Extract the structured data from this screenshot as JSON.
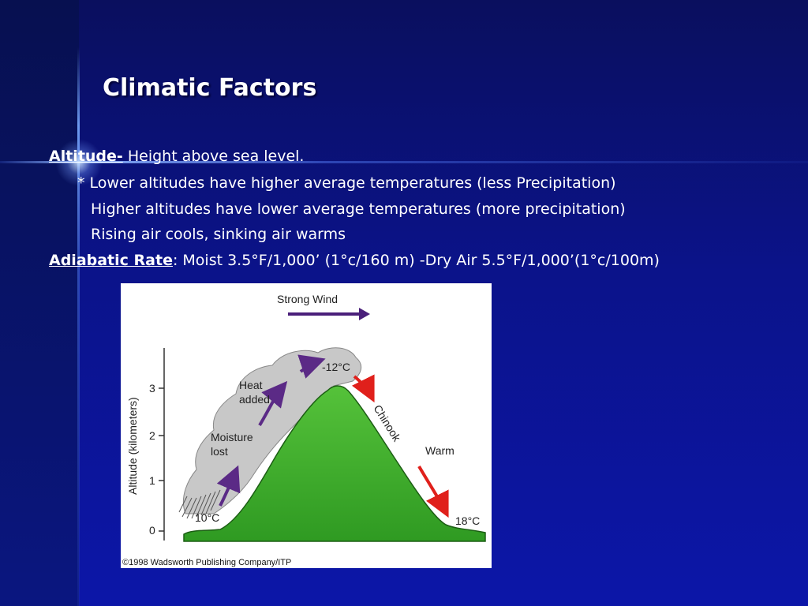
{
  "slide": {
    "title": "Climatic Factors",
    "altitude_term": "Altitude-",
    "altitude_def": " Height above sea level.",
    "bullet_lower": "* Lower altitudes have higher average temperatures (less Precipitation)",
    "bullet_higher": "Higher altitudes have lower average temperatures (more precipitation)",
    "bullet_rising": "Rising air cools, sinking air warms",
    "adiabatic_term": "Adiabatic Rate",
    "adiabatic_def": ": Moist 3.5°F/1,000’ (1°c/160 m)  -Dry Air 5.5°F/1,000’(1°c/100m)"
  },
  "diagram": {
    "wind_label": "Strong Wind",
    "y_axis_label": "Altitude (kilometers)",
    "y_ticks": [
      "0",
      "1",
      "2",
      "3"
    ],
    "heat_label_1": "Heat",
    "heat_label_2": "added",
    "moisture_label_1": "Moisture",
    "moisture_label_2": "lost",
    "temp_base": "10°C",
    "temp_peak": "-12°C",
    "temp_lee": "18°C",
    "chinook_label": "Chinook",
    "warm_label": "Warm",
    "copyright": "©1998 Wadsworth Publishing Company/ITP",
    "colors": {
      "mountain": "#3fae2a",
      "cloud": "#c8c8c8",
      "rising_arrow": "#5b2a86",
      "descending_arrow": "#e0201b"
    }
  }
}
